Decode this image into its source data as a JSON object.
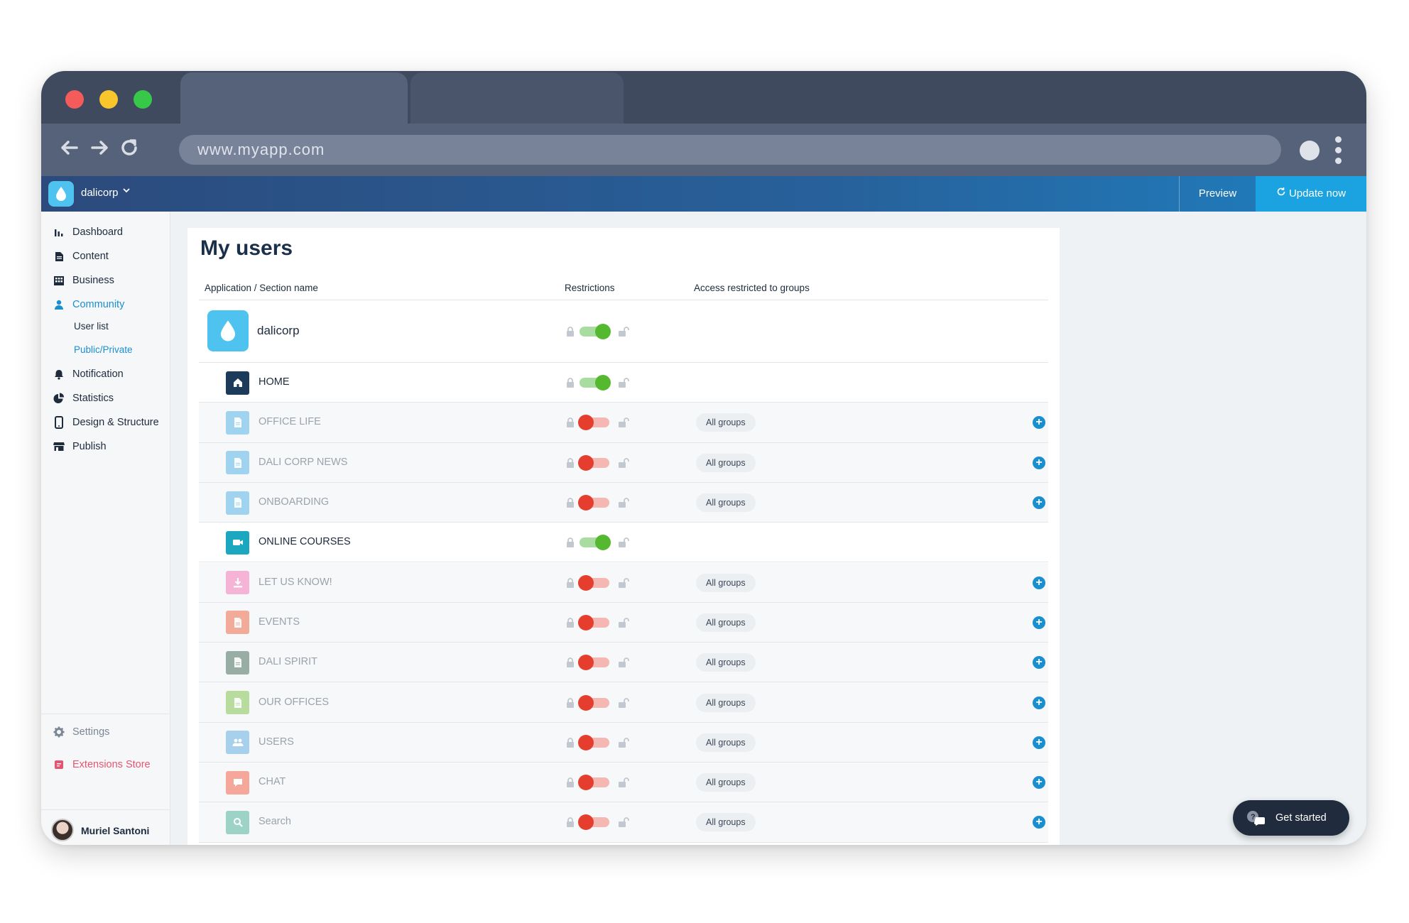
{
  "browser": {
    "url": "www.myapp.com"
  },
  "appbar": {
    "app_name": "dalicorp",
    "preview_label": "Preview",
    "update_label": "Update now"
  },
  "sidebar": {
    "items": [
      {
        "label": "Dashboard",
        "icon": "bar-chart-icon"
      },
      {
        "label": "Content",
        "icon": "document-icon"
      },
      {
        "label": "Business",
        "icon": "building-icon"
      },
      {
        "label": "Community",
        "icon": "user-icon"
      },
      {
        "label": "Notification",
        "icon": "bell-icon"
      },
      {
        "label": "Statistics",
        "icon": "pie-chart-icon"
      },
      {
        "label": "Design & Structure",
        "icon": "mobile-icon"
      },
      {
        "label": "Publish",
        "icon": "store-icon"
      }
    ],
    "sub_items": [
      {
        "label": "User list"
      },
      {
        "label": "Public/Private"
      }
    ],
    "settings_label": "Settings",
    "extensions_label": "Extensions Store",
    "user_name": "Muriel Santoni"
  },
  "main": {
    "title": "My users",
    "columns": {
      "name": "Application / Section name",
      "restrictions": "Restrictions",
      "groups": "Access restricted to groups"
    },
    "app_row": {
      "label": "dalicorp",
      "restricted": false
    },
    "sections": [
      {
        "label": "HOME",
        "restricted": false,
        "icon": "home-icon",
        "color": "#1c3b5a",
        "groups": ""
      },
      {
        "label": "OFFICE LIFE",
        "restricted": true,
        "icon": "document-icon",
        "color": "#9fd3f0",
        "groups": "All groups"
      },
      {
        "label": "DALI CORP NEWS",
        "restricted": true,
        "icon": "document-icon",
        "color": "#9fd3f0",
        "groups": "All groups"
      },
      {
        "label": "ONBOARDING",
        "restricted": true,
        "icon": "document-icon",
        "color": "#9fd3f0",
        "groups": "All groups"
      },
      {
        "label": "ONLINE COURSES",
        "restricted": false,
        "icon": "video-icon",
        "color": "#1aa7bf",
        "groups": ""
      },
      {
        "label": "LET US KNOW!",
        "restricted": true,
        "icon": "download-icon",
        "color": "#f5b3d6",
        "groups": "All groups"
      },
      {
        "label": "EVENTS",
        "restricted": true,
        "icon": "document-icon",
        "color": "#f2ab98",
        "groups": "All groups"
      },
      {
        "label": "DALI SPIRIT",
        "restricted": true,
        "icon": "document-icon",
        "color": "#98aea4",
        "groups": "All groups"
      },
      {
        "label": "OUR OFFICES",
        "restricted": true,
        "icon": "document-icon",
        "color": "#b8dc9e",
        "groups": "All groups"
      },
      {
        "label": "USERS",
        "restricted": true,
        "icon": "users-icon",
        "color": "#a7d0ec",
        "groups": "All groups"
      },
      {
        "label": "CHAT",
        "restricted": true,
        "icon": "chat-icon",
        "color": "#f5a89a",
        "groups": "All groups"
      },
      {
        "label": "Search",
        "restricted": true,
        "icon": "search-icon",
        "color": "#9dd2c6",
        "groups": "All groups"
      }
    ]
  },
  "help": {
    "get_started_label": "Get started"
  },
  "colors": {
    "accent": "#1a8fd0",
    "toggle_on": "#54b92f",
    "toggle_off": "#e53e2e",
    "title": "#1c2f4a"
  }
}
